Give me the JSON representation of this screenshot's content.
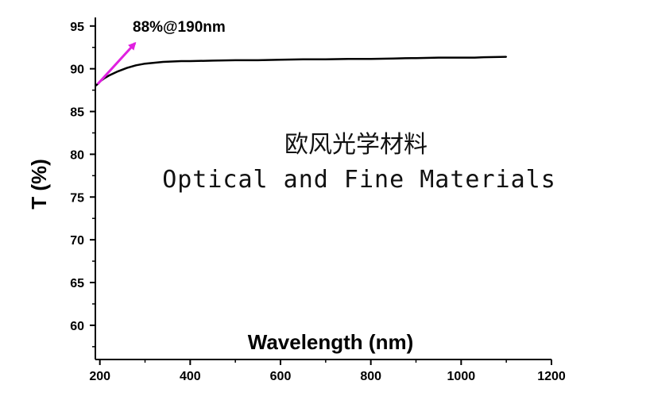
{
  "chart_data": {
    "type": "line",
    "title": "",
    "xlabel": "Wavelength (nm)",
    "ylabel": "T (%)",
    "xlim": [
      190,
      1200
    ],
    "ylim": [
      56,
      96
    ],
    "xticks": [
      200,
      400,
      600,
      800,
      1000,
      1200
    ],
    "yticks": [
      60,
      65,
      70,
      75,
      80,
      85,
      90,
      95
    ],
    "grid": false,
    "series": [
      {
        "color": "#000000",
        "x": [
          190,
          195,
          200,
          210,
          220,
          240,
          260,
          280,
          300,
          320,
          340,
          360,
          380,
          400,
          450,
          500,
          540,
          550,
          600,
          650,
          700,
          750,
          800,
          850,
          890,
          900,
          950,
          1000,
          1030,
          1050,
          1100
        ],
        "y": [
          88.0,
          88.2,
          88.5,
          88.9,
          89.2,
          89.7,
          90.1,
          90.4,
          90.6,
          90.7,
          90.8,
          90.85,
          90.9,
          90.9,
          90.95,
          91.0,
          91.0,
          91.0,
          91.05,
          91.1,
          91.1,
          91.15,
          91.15,
          91.2,
          91.25,
          91.25,
          91.3,
          91.3,
          91.3,
          91.35,
          91.4
        ]
      }
    ],
    "annotations": [
      {
        "text": "88%@190nm",
        "arrow_from": [
          195,
          88.2
        ],
        "arrow_to": [
          278,
          93.0
        ],
        "arrow_color": "#e020e0"
      }
    ]
  },
  "watermark": {
    "chinese": "欧风光学材料",
    "english": "Optical and Fine Materials"
  }
}
